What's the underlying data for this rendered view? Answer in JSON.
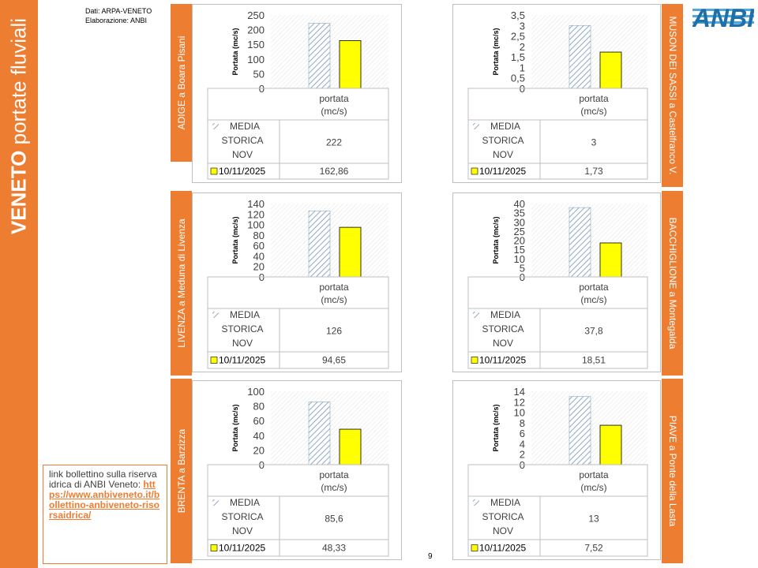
{
  "page_title_bold": "VENETO",
  "page_title_rest": " portate fluviali",
  "source_line1": "Dati: ARPA-VENETO",
  "source_line2": "Elaborazione: ANBI",
  "logo_text": "ANBI",
  "link_box_text": "link bollettino sulla riserva idrica di ANBI Veneto:",
  "link_box_url": "https://www.anbiveneto.it/bollettino-anbiveneto-risorsaidrica/",
  "page_number": "9",
  "colors": {
    "accent": "#ED7D31",
    "series_current": "#FFFF00",
    "series_historic": "#8EA9C1"
  },
  "chart_data": [
    {
      "id": "adige",
      "type": "bar",
      "station": "ADIGE a Boara Pisani",
      "ylabel": "Portata (mc/s)",
      "category": "portata (mc/s)",
      "ylim": [
        0,
        250
      ],
      "yticks": [
        "0",
        "50",
        "100",
        "150",
        "200",
        "250"
      ],
      "series": [
        {
          "name": "MEDIA STORICA NOV",
          "value": 222,
          "value_label": "222",
          "pattern": "hatched"
        },
        {
          "name": "10/11/2025",
          "value": 162.86,
          "value_label": "162,86",
          "pattern": "yellow"
        }
      ]
    },
    {
      "id": "muson",
      "type": "bar",
      "station": "MUSON DEI SASSI a Castelfranco V.",
      "ylabel": "Portata (mc/s)",
      "category": "portata (mc/s)",
      "ylim": [
        0,
        3.5
      ],
      "yticks": [
        "0",
        "0,5",
        "1",
        "1,5",
        "2",
        "2,5",
        "3",
        "3,5"
      ],
      "series": [
        {
          "name": "MEDIA STORICA NOV",
          "value": 3,
          "value_label": "3",
          "pattern": "hatched"
        },
        {
          "name": "10/11/2025",
          "value": 1.73,
          "value_label": "1,73",
          "pattern": "yellow"
        }
      ]
    },
    {
      "id": "livenza",
      "type": "bar",
      "station": "LIVENZA a Meduna di Livenza",
      "ylabel": "Portata (mc/s)",
      "category": "portata (mc/s)",
      "ylim": [
        0,
        140
      ],
      "yticks": [
        "0",
        "20",
        "40",
        "60",
        "80",
        "100",
        "120",
        "140"
      ],
      "series": [
        {
          "name": "MEDIA STORICA NOV",
          "value": 126,
          "value_label": "126",
          "pattern": "hatched"
        },
        {
          "name": "10/11/2025",
          "value": 94.65,
          "value_label": "94,65",
          "pattern": "yellow"
        }
      ]
    },
    {
      "id": "bacchiglione",
      "type": "bar",
      "station": "BACCHIGLIONE a Montegalda",
      "ylabel": "Portata (mc/s)",
      "category": "portata (mc/s)",
      "ylim": [
        0,
        40
      ],
      "yticks": [
        "0",
        "5",
        "10",
        "15",
        "20",
        "25",
        "30",
        "35",
        "40"
      ],
      "series": [
        {
          "name": "MEDIA STORICA NOV",
          "value": 37.8,
          "value_label": "37,8",
          "pattern": "hatched"
        },
        {
          "name": "10/11/2025",
          "value": 18.51,
          "value_label": "18,51",
          "pattern": "yellow"
        }
      ]
    },
    {
      "id": "brenta",
      "type": "bar",
      "station": "BRENTA a Barzizza",
      "ylabel": "Portata (mc/s)",
      "category": "portata (mc/s)",
      "ylim": [
        0,
        100
      ],
      "yticks": [
        "0",
        "20",
        "40",
        "60",
        "80",
        "100"
      ],
      "series": [
        {
          "name": "MEDIA STORICA NOV",
          "value": 85.6,
          "value_label": "85,6",
          "pattern": "hatched"
        },
        {
          "name": "10/11/2025",
          "value": 48.33,
          "value_label": "48,33",
          "pattern": "yellow"
        }
      ]
    },
    {
      "id": "piave",
      "type": "bar",
      "station": "PIAVE a Ponte della Lasta",
      "ylabel": "Portata (mc/s)",
      "category": "portata (mc/s)",
      "ylim": [
        0,
        14
      ],
      "yticks": [
        "0",
        "2",
        "4",
        "6",
        "8",
        "10",
        "12",
        "14"
      ],
      "series": [
        {
          "name": "MEDIA STORICA NOV",
          "value": 13,
          "value_label": "13",
          "pattern": "hatched"
        },
        {
          "name": "10/11/2025",
          "value": 7.52,
          "value_label": "7,52",
          "pattern": "yellow"
        }
      ]
    }
  ]
}
